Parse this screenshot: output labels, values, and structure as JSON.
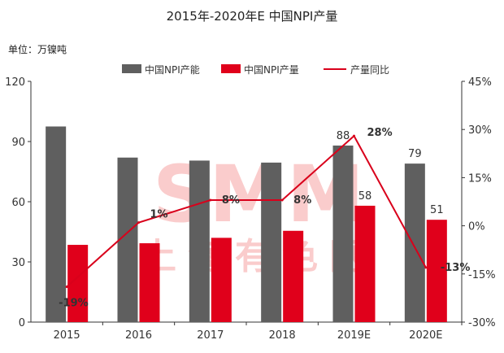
{
  "chart_data": {
    "type": "bar",
    "title": "2015年-2020年E 中国NPI产量",
    "unit_label": "单位：万镍吨",
    "categories": [
      "2015",
      "2016",
      "2017",
      "2018",
      "2019E",
      "2020E"
    ],
    "series": [
      {
        "name": "中国NPI产能",
        "type": "bar",
        "axis": "left",
        "color": "#5f5f5f",
        "values": [
          97.5,
          82,
          80.5,
          79.5,
          88,
          79
        ]
      },
      {
        "name": "中国NPI产量",
        "type": "bar",
        "axis": "left",
        "color": "#e0001b",
        "values": [
          38.5,
          39.3,
          42,
          45.5,
          58,
          51
        ]
      },
      {
        "name": "产量同比",
        "type": "line",
        "axis": "right",
        "color": "#d9001b",
        "values": [
          -19,
          1,
          8,
          8,
          28,
          -13
        ]
      }
    ],
    "bar_labels": {
      "capacity": [
        "",
        "",
        "",
        "",
        "88",
        "79"
      ],
      "output": [
        "",
        "",
        "",
        "",
        "58",
        "51"
      ]
    },
    "line_labels": [
      "-19%",
      "1%",
      "8%",
      "8%",
      "28%",
      "-13%"
    ],
    "ylim_left": [
      0,
      120
    ],
    "yticks_left": [
      "0",
      "30",
      "60",
      "90",
      "120"
    ],
    "ylim_right": [
      -30,
      45
    ],
    "yticks_right": [
      "-30%",
      "-15%",
      "0%",
      "15%",
      "30%",
      "45%"
    ],
    "legend_position": "top",
    "grid": false
  },
  "watermark": {
    "latin": "SMM",
    "cjk": "上海有色网",
    "color": "#f6a3a3"
  }
}
